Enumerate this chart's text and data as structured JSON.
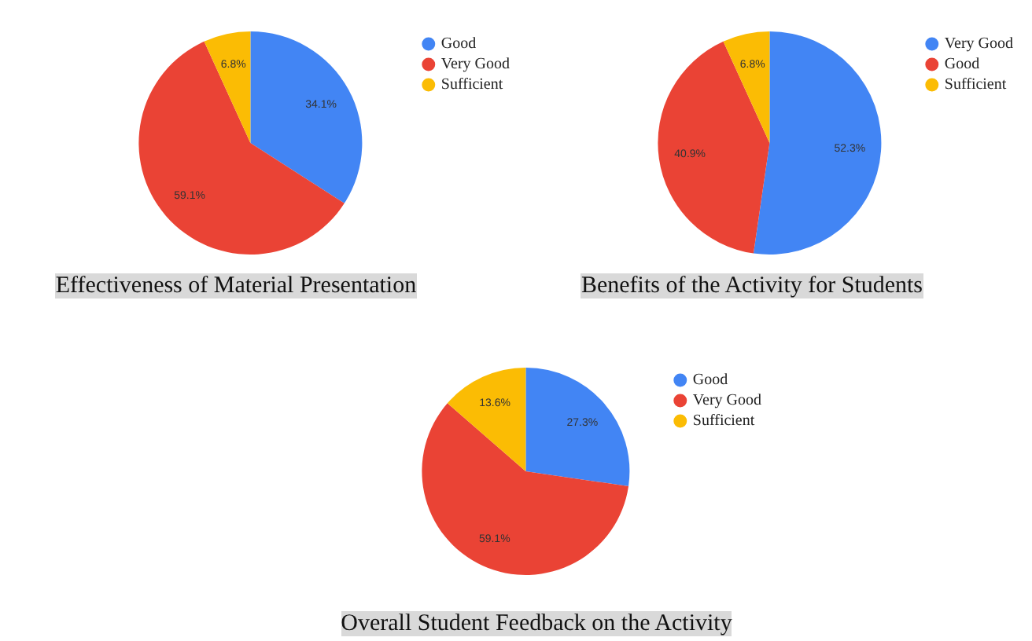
{
  "chart_data": [
    {
      "type": "pie",
      "title": "Effectiveness of Material Presentation",
      "categories": [
        "Good",
        "Very Good",
        "Sufficient"
      ],
      "values": [
        34.1,
        59.1,
        6.8
      ],
      "colors": [
        "#4285f4",
        "#ea4335",
        "#fbbc04"
      ],
      "value_labels": [
        "34.1%",
        "59.1%",
        "6.8%"
      ],
      "legend": "top right"
    },
    {
      "type": "pie",
      "title": "Benefits of the Activity for Students",
      "categories": [
        "Very Good",
        "Good",
        "Sufficient"
      ],
      "values": [
        52.3,
        40.9,
        6.8
      ],
      "colors": [
        "#4285f4",
        "#ea4335",
        "#fbbc04"
      ],
      "value_labels": [
        "52.3%",
        "40.9%",
        "6.8%"
      ],
      "legend": "top right"
    },
    {
      "type": "pie",
      "title": "Overall Student Feedback on the Activity",
      "categories": [
        "Good",
        "Very Good",
        "Sufficient"
      ],
      "values": [
        27.3,
        59.1,
        13.6
      ],
      "colors": [
        "#4285f4",
        "#ea4335",
        "#fbbc04"
      ],
      "value_labels": [
        "27.3%",
        "59.1%",
        "13.6%"
      ],
      "legend": "top right"
    }
  ]
}
